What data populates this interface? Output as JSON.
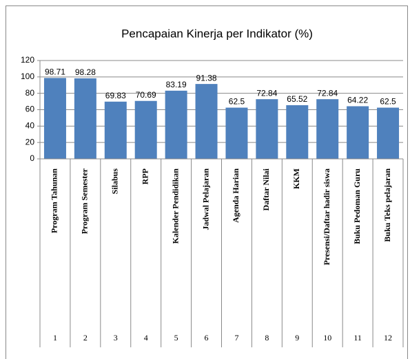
{
  "chart_data": {
    "type": "bar",
    "title": "Pencapaian Kinerja per Indikator (%)",
    "categories": [
      "Program Tahunan",
      "Program Semester",
      "Silabus",
      "RPP",
      "Kalender Pendidikan",
      "Jadwal Pelajaran",
      "Agenda Harian",
      "Daftar Nilai",
      "KKM",
      "Presensi/Daftar hadir siswa",
      "Buku Pedoman Guru",
      "Buku Teks pelajaran"
    ],
    "category_numbers": [
      1,
      2,
      3,
      4,
      5,
      6,
      7,
      8,
      9,
      10,
      11,
      12
    ],
    "values": [
      98.71,
      98.28,
      69.83,
      70.69,
      83.19,
      91.38,
      62.5,
      72.84,
      65.52,
      72.84,
      64.22,
      62.5
    ],
    "color": "#4f81bd",
    "ylim": [
      0,
      120
    ],
    "yticks": [
      0,
      20,
      40,
      60,
      80,
      100,
      120
    ],
    "grid": true
  }
}
